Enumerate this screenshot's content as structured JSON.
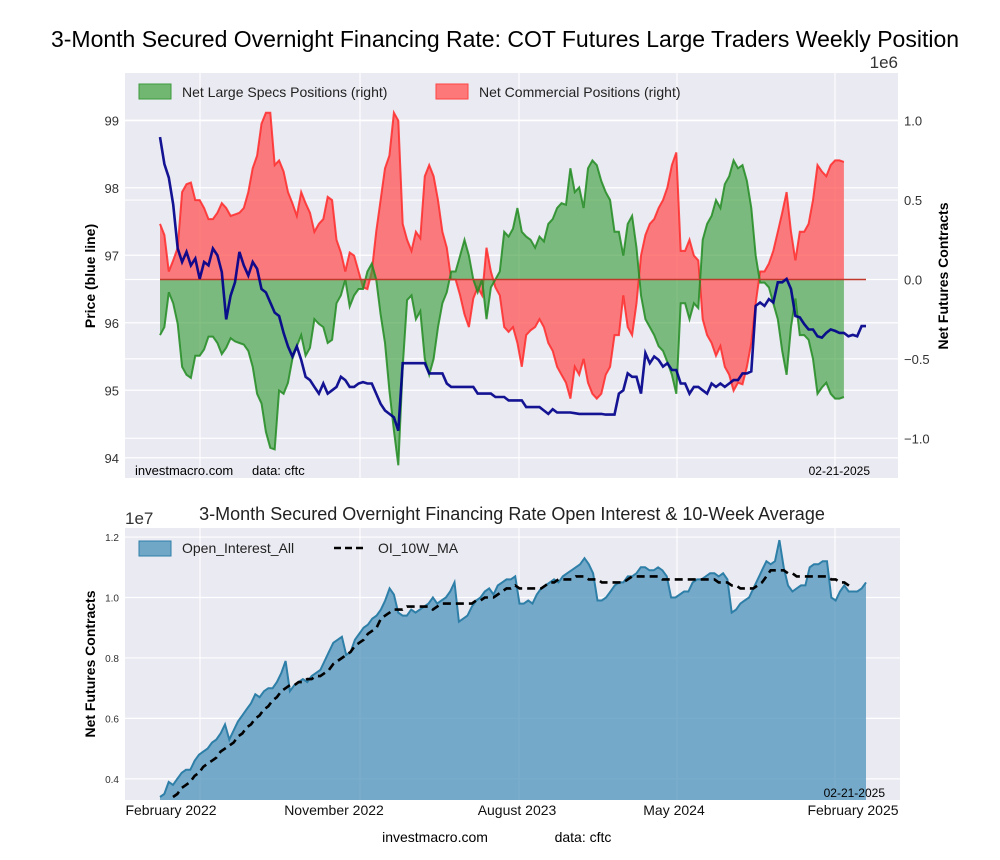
{
  "chart_data": [
    {
      "type": "line",
      "title": "3-Month Secured Overnight Financing Rate: COT Futures Large Traders Weekly Position",
      "left_axis": {
        "label": "Price (blue line)",
        "ylim": [
          93.7,
          99.7
        ],
        "ticks": [
          94,
          95,
          96,
          97,
          98,
          99
        ]
      },
      "right_axis": {
        "label": "Net Futures Contracts",
        "ylim": [
          -1.25,
          1.3
        ],
        "ticks": [
          -1.0,
          -0.5,
          0.0,
          0.5,
          1.0
        ],
        "tick_labels": [
          "−1.0",
          "−0.5",
          "0.0",
          "0.5",
          "1.0"
        ],
        "offset_label": "1e6"
      },
      "legend": {
        "placement": "top-left",
        "entries": [
          "Net Large Specs Positions (right)",
          "Net Commercial Positions (right)"
        ]
      },
      "watermark": {
        "site": "investmacro.com",
        "source": "data: cftc"
      },
      "date_label": "02-21-2025",
      "grid": true,
      "colors": {
        "price": "#00008b",
        "specs": "#228b22",
        "specs_fill": "#4caf50",
        "commercial": "#ff2a2a",
        "commercial_fill": "#ff5050",
        "zero_line": "#c0392b",
        "background": "#eaeaf2"
      },
      "series": [
        {
          "name": "Price",
          "axis": "left",
          "values": [
            98.75,
            98.35,
            98.15,
            97.75,
            97.1,
            96.9,
            97.05,
            96.85,
            96.95,
            96.65,
            96.9,
            96.85,
            97.1,
            97.0,
            96.75,
            96.05,
            96.4,
            96.6,
            97.05,
            96.85,
            96.7,
            96.9,
            96.8,
            96.5,
            96.45,
            96.3,
            96.15,
            96.1,
            95.85,
            95.65,
            95.5,
            95.65,
            95.45,
            95.2,
            95.15,
            95.05,
            94.95,
            95.1,
            94.95,
            95.0,
            95.05,
            95.2,
            95.15,
            95.05,
            95.05,
            95.1,
            95.12,
            95.1,
            95.1,
            94.95,
            94.8,
            94.7,
            94.65,
            94.6,
            94.4,
            95.4,
            95.4,
            95.4,
            95.4,
            95.4,
            95.4,
            95.25,
            95.25,
            95.25,
            95.25,
            95.1,
            95.05,
            95.05,
            95.05,
            95.05,
            95.05,
            95.05,
            94.95,
            94.95,
            94.95,
            94.95,
            94.9,
            94.9,
            94.9,
            94.85,
            94.85,
            94.85,
            94.85,
            94.75,
            94.75,
            94.75,
            94.75,
            94.7,
            94.65,
            94.72,
            94.67,
            94.67,
            94.67,
            94.67,
            94.66,
            94.65,
            94.65,
            94.65,
            94.65,
            94.65,
            94.65,
            94.64,
            94.64,
            94.64,
            94.95,
            95.0,
            95.25,
            95.2,
            95.2,
            94.95,
            95.55,
            95.4,
            95.5,
            95.45,
            95.35,
            95.4,
            95.3,
            95.3,
            95.1,
            95.1,
            94.95,
            95.05,
            95.05,
            95.0,
            94.95,
            95.1,
            95.05,
            95.1,
            95.05,
            95.1,
            95.15,
            95.15,
            95.25,
            95.25,
            95.28,
            96.25,
            96.3,
            96.25,
            96.35,
            96.3,
            96.6,
            96.6,
            96.65,
            96.5,
            96.1,
            96.08,
            95.98,
            95.9,
            95.9,
            95.8,
            95.78,
            95.85,
            95.9,
            95.88,
            95.85,
            95.85,
            95.8,
            95.82,
            95.8,
            95.95,
            95.95
          ]
        },
        {
          "name": "Net Large Specs Positions (right)",
          "axis": "right",
          "unit_scale": 1000000,
          "values": [
            -0.35,
            -0.3,
            -0.08,
            -0.15,
            -0.28,
            -0.55,
            -0.6,
            -0.62,
            -0.48,
            -0.48,
            -0.44,
            -0.36,
            -0.36,
            -0.4,
            -0.47,
            -0.43,
            -0.37,
            -0.39,
            -0.4,
            -0.41,
            -0.45,
            -0.55,
            -0.72,
            -0.78,
            -0.96,
            -1.06,
            -1.07,
            -0.7,
            -0.72,
            -0.65,
            -0.5,
            -0.42,
            -0.35,
            -0.48,
            -0.43,
            -0.25,
            -0.28,
            -0.3,
            -0.4,
            -0.38,
            -0.15,
            -0.1,
            0.0,
            -0.17,
            -0.1,
            -0.06,
            -0.06,
            0.05,
            0.1,
            0.0,
            -0.22,
            -0.4,
            -0.7,
            -0.95,
            -1.17,
            -0.55,
            -0.13,
            -0.1,
            -0.25,
            -0.2,
            -0.5,
            -0.6,
            -0.5,
            -0.3,
            -0.15,
            -0.08,
            0.05,
            0.05,
            0.15,
            0.25,
            0.15,
            0.0,
            -0.08,
            0.0,
            -0.25,
            -0.05,
            0.0,
            0.05,
            0.3,
            0.27,
            0.32,
            0.45,
            0.3,
            0.27,
            0.25,
            0.2,
            0.27,
            0.24,
            0.35,
            0.38,
            0.45,
            0.48,
            0.47,
            0.7,
            0.55,
            0.58,
            0.45,
            0.7,
            0.75,
            0.72,
            0.62,
            0.55,
            0.5,
            0.3,
            0.3,
            0.15,
            0.35,
            0.4,
            0.2,
            -0.1,
            -0.25,
            -0.3,
            -0.35,
            -0.42,
            -0.45,
            -0.52,
            -0.6,
            -0.72,
            -0.15,
            -0.15,
            -0.25,
            -0.15,
            -0.18,
            0.25,
            0.35,
            0.4,
            0.5,
            0.45,
            0.6,
            0.65,
            0.75,
            0.7,
            0.72,
            0.62,
            0.45,
            0.15,
            -0.02,
            -0.02,
            -0.05,
            -0.15,
            -0.25,
            -0.45,
            -0.6,
            -0.3,
            -0.12,
            -0.35,
            -0.35,
            -0.38,
            -0.5,
            -0.72,
            -0.68,
            -0.65,
            -0.72,
            -0.75,
            -0.75,
            -0.74
          ]
        },
        {
          "name": "Net Commercial Positions (right)",
          "axis": "right",
          "unit_scale": 1000000,
          "values": [
            0.35,
            0.28,
            0.05,
            0.12,
            0.2,
            0.55,
            0.6,
            0.61,
            0.5,
            0.5,
            0.45,
            0.38,
            0.38,
            0.42,
            0.48,
            0.45,
            0.4,
            0.41,
            0.42,
            0.45,
            0.55,
            0.7,
            0.78,
            0.98,
            1.05,
            1.05,
            0.72,
            0.75,
            0.68,
            0.55,
            0.48,
            0.4,
            0.55,
            0.48,
            0.42,
            0.3,
            0.35,
            0.38,
            0.52,
            0.5,
            0.25,
            0.17,
            0.05,
            0.17,
            0.15,
            0.05,
            -0.05,
            -0.06,
            0.05,
            0.3,
            0.5,
            0.7,
            0.78,
            1.05,
            1.0,
            0.35,
            0.25,
            0.18,
            0.3,
            0.26,
            0.65,
            0.72,
            0.65,
            0.5,
            0.3,
            0.2,
            0.0,
            0.0,
            -0.1,
            -0.22,
            -0.3,
            -0.12,
            -0.05,
            -0.1,
            0.2,
            0.05,
            -0.05,
            -0.1,
            -0.3,
            -0.33,
            -0.3,
            -0.4,
            -0.55,
            -0.35,
            -0.32,
            -0.3,
            -0.25,
            -0.3,
            -0.4,
            -0.45,
            -0.55,
            -0.6,
            -0.65,
            -0.75,
            -0.55,
            -0.6,
            -0.5,
            -0.65,
            -0.72,
            -0.75,
            -0.72,
            -0.6,
            -0.55,
            -0.35,
            -0.35,
            -0.1,
            -0.3,
            -0.35,
            -0.15,
            0.15,
            0.28,
            0.35,
            0.38,
            0.45,
            0.5,
            0.58,
            0.72,
            0.8,
            0.18,
            0.18,
            0.25,
            0.15,
            0.12,
            -0.25,
            -0.35,
            -0.4,
            -0.48,
            -0.42,
            -0.55,
            -0.6,
            -0.7,
            -0.65,
            -0.66,
            -0.55,
            -0.4,
            -0.15,
            0.05,
            0.05,
            0.1,
            0.18,
            0.3,
            0.42,
            0.55,
            0.3,
            0.12,
            0.3,
            0.3,
            0.35,
            0.5,
            0.72,
            0.68,
            0.65,
            0.72,
            0.75,
            0.75,
            0.74
          ]
        }
      ],
      "x_range": [
        "2022-02",
        "2025-02-21"
      ]
    },
    {
      "type": "area",
      "title": "3-Month Secured Overnight Financing Rate Open Interest & 10-Week Average",
      "xlabel": "",
      "ylabel": "Net Futures Contracts",
      "offset_label": "1e7",
      "ylim": [
        0.33,
        1.23
      ],
      "y_ticks": [
        0.4,
        0.6,
        0.8,
        1.0,
        1.2
      ],
      "x_tick_labels": [
        "February 2022",
        "November 2022",
        "August 2023",
        "May 2024",
        "February 2025"
      ],
      "legend": {
        "placement": "top-left",
        "entries": [
          "Open_Interest_All",
          "OI_10W_MA"
        ]
      },
      "date_label": "02-21-2025",
      "watermark": {
        "site": "investmacro.com",
        "source": "data: cftc"
      },
      "grid": true,
      "colors": {
        "area": "#5b9bbf",
        "area_line": "#2e7fa8",
        "ma": "#000000",
        "background": "#eaeaf2"
      },
      "series": [
        {
          "name": "Open_Interest_All",
          "unit_scale": 10000000,
          "values": [
            0.34,
            0.35,
            0.39,
            0.38,
            0.4,
            0.42,
            0.43,
            0.43,
            0.46,
            0.48,
            0.49,
            0.5,
            0.52,
            0.53,
            0.55,
            0.58,
            0.53,
            0.56,
            0.59,
            0.61,
            0.63,
            0.65,
            0.68,
            0.67,
            0.69,
            0.7,
            0.7,
            0.72,
            0.75,
            0.79,
            0.69,
            0.71,
            0.72,
            0.73,
            0.72,
            0.74,
            0.75,
            0.76,
            0.79,
            0.82,
            0.85,
            0.86,
            0.87,
            0.81,
            0.82,
            0.86,
            0.88,
            0.9,
            0.91,
            0.93,
            0.94,
            0.96,
            0.99,
            1.03,
            1.01,
            0.95,
            0.94,
            0.94,
            0.96,
            0.95,
            0.96,
            0.97,
            0.98,
            1.0,
            0.98,
            0.99,
            1.0,
            1.02,
            1.05,
            0.92,
            0.93,
            0.94,
            0.97,
            0.99,
            1.0,
            1.02,
            1.03,
            1.01,
            1.04,
            1.05,
            1.06,
            1.06,
            1.07,
            0.98,
            0.98,
            0.99,
            0.98,
            1.01,
            1.03,
            1.04,
            1.05,
            1.06,
            1.05,
            1.07,
            1.08,
            1.09,
            1.1,
            1.11,
            1.13,
            1.11,
            1.08,
            0.99,
            0.99,
            1.0,
            1.02,
            1.04,
            1.05,
            1.05,
            1.07,
            1.07,
            1.08,
            1.1,
            1.1,
            1.09,
            1.09,
            1.1,
            1.09,
            1.07,
            1.0,
            1.0,
            1.01,
            1.02,
            1.02,
            1.05,
            1.06,
            1.06,
            1.07,
            1.08,
            1.08,
            1.07,
            1.08,
            1.06,
            0.95,
            0.96,
            0.98,
            0.99,
            1.0,
            1.03,
            1.06,
            1.09,
            1.12,
            1.11,
            1.12,
            1.19,
            1.1,
            1.04,
            1.02,
            1.03,
            1.04,
            1.04,
            1.1,
            1.11,
            1.11,
            1.12,
            1.12,
            1.0,
            0.99,
            1.02,
            1.04,
            1.02,
            1.02,
            1.02,
            1.03,
            1.05
          ]
        },
        {
          "name": "OI_10W_MA",
          "unit_scale": 10000000,
          "values": [
            0.3,
            0.31,
            0.32,
            0.34,
            0.35,
            0.37,
            0.38,
            0.39,
            0.41,
            0.42,
            0.44,
            0.45,
            0.46,
            0.47,
            0.49,
            0.5,
            0.51,
            0.52,
            0.54,
            0.55,
            0.57,
            0.58,
            0.6,
            0.61,
            0.63,
            0.64,
            0.66,
            0.67,
            0.69,
            0.7,
            0.71,
            0.71,
            0.72,
            0.72,
            0.73,
            0.73,
            0.74,
            0.74,
            0.75,
            0.76,
            0.78,
            0.79,
            0.8,
            0.81,
            0.82,
            0.84,
            0.85,
            0.86,
            0.88,
            0.89,
            0.9,
            0.93,
            0.94,
            0.95,
            0.96,
            0.96,
            0.96,
            0.97,
            0.97,
            0.97,
            0.97,
            0.97,
            0.97,
            0.96,
            0.97,
            0.98,
            0.98,
            0.98,
            0.98,
            0.98,
            0.98,
            0.98,
            0.98,
            0.99,
            0.99,
            1.0,
            1.0,
            1.0,
            1.01,
            1.02,
            1.03,
            1.03,
            1.04,
            1.03,
            1.03,
            1.03,
            1.03,
            1.03,
            1.03,
            1.04,
            1.05,
            1.05,
            1.06,
            1.06,
            1.06,
            1.06,
            1.07,
            1.07,
            1.07,
            1.06,
            1.06,
            1.06,
            1.05,
            1.05,
            1.05,
            1.05,
            1.05,
            1.05,
            1.06,
            1.07,
            1.07,
            1.07,
            1.07,
            1.07,
            1.07,
            1.07,
            1.06,
            1.06,
            1.06,
            1.06,
            1.06,
            1.06,
            1.06,
            1.06,
            1.06,
            1.06,
            1.06,
            1.06,
            1.06,
            1.05,
            1.05,
            1.05,
            1.04,
            1.04,
            1.03,
            1.03,
            1.03,
            1.03,
            1.04,
            1.05,
            1.07,
            1.09,
            1.09,
            1.09,
            1.09,
            1.08,
            1.08,
            1.07,
            1.07,
            1.07,
            1.07,
            1.07,
            1.07,
            1.07,
            1.07,
            1.06,
            1.06,
            1.05,
            1.05,
            1.04,
            1.03
          ]
        }
      ],
      "x_range": [
        "2022-02",
        "2025-02-21"
      ]
    }
  ]
}
